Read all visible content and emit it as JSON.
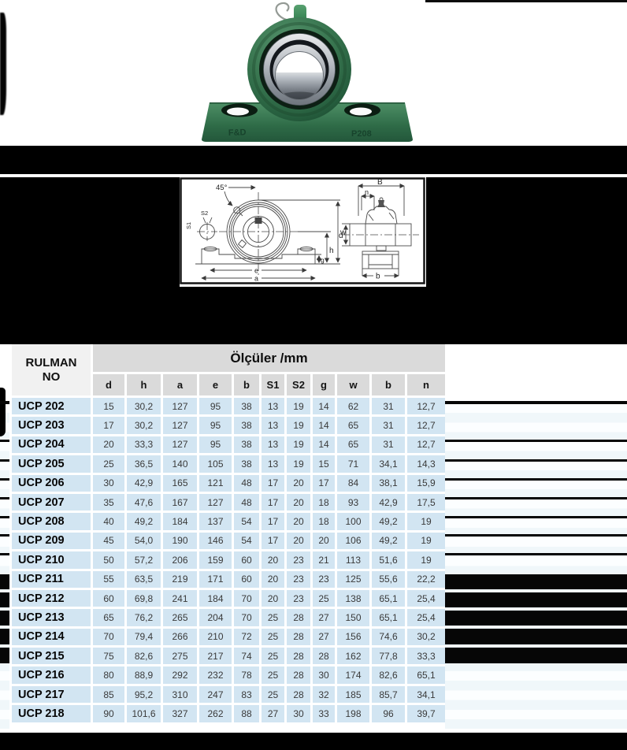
{
  "photo": {
    "description": "green UCP pillow block bearing unit",
    "embossed_left": "F&D",
    "embossed_right": "P208",
    "body_color": "#2f6b47"
  },
  "drawing": {
    "labels": {
      "angle": "45°",
      "s2": "S2",
      "s1": "S1",
      "w": "w",
      "h": "h",
      "g": "g",
      "e": "e",
      "a": "a",
      "B": "B",
      "n": "n",
      "d": "d",
      "b": "b"
    }
  },
  "table": {
    "rowspan_header": {
      "line1": "RULMAN",
      "line2": "NO"
    },
    "group_header": "Ölçüler /mm",
    "columns": [
      "d",
      "h",
      "a",
      "e",
      "b",
      "S1",
      "S2",
      "g",
      "w",
      "b",
      "n"
    ],
    "rows": [
      {
        "name": "UCP 202",
        "values": [
          "15",
          "30,2",
          "127",
          "95",
          "38",
          "13",
          "19",
          "14",
          "62",
          "31",
          "12,7"
        ]
      },
      {
        "name": "UCP 203",
        "values": [
          "17",
          "30,2",
          "127",
          "95",
          "38",
          "13",
          "19",
          "14",
          "65",
          "31",
          "12,7"
        ]
      },
      {
        "name": "UCP 204",
        "values": [
          "20",
          "33,3",
          "127",
          "95",
          "38",
          "13",
          "19",
          "14",
          "65",
          "31",
          "12,7"
        ]
      },
      {
        "name": "UCP 205",
        "values": [
          "25",
          "36,5",
          "140",
          "105",
          "38",
          "13",
          "19",
          "15",
          "71",
          "34,1",
          "14,3"
        ]
      },
      {
        "name": "UCP 206",
        "values": [
          "30",
          "42,9",
          "165",
          "121",
          "48",
          "17",
          "20",
          "17",
          "84",
          "38,1",
          "15,9"
        ]
      },
      {
        "name": "UCP 207",
        "values": [
          "35",
          "47,6",
          "167",
          "127",
          "48",
          "17",
          "20",
          "18",
          "93",
          "42,9",
          "17,5"
        ]
      },
      {
        "name": "UCP 208",
        "values": [
          "40",
          "49,2",
          "184",
          "137",
          "54",
          "17",
          "20",
          "18",
          "100",
          "49,2",
          "19"
        ]
      },
      {
        "name": "UCP 209",
        "values": [
          "45",
          "54,0",
          "190",
          "146",
          "54",
          "17",
          "20",
          "20",
          "106",
          "49,2",
          "19"
        ]
      },
      {
        "name": "UCP 210",
        "values": [
          "50",
          "57,2",
          "206",
          "159",
          "60",
          "20",
          "23",
          "21",
          "113",
          "51,6",
          "19"
        ]
      },
      {
        "name": "UCP 211",
        "values": [
          "55",
          "63,5",
          "219",
          "171",
          "60",
          "20",
          "23",
          "23",
          "125",
          "55,6",
          "22,2"
        ]
      },
      {
        "name": "UCP 212",
        "values": [
          "60",
          "69,8",
          "241",
          "184",
          "70",
          "20",
          "23",
          "25",
          "138",
          "65,1",
          "25,4"
        ]
      },
      {
        "name": "UCP 213",
        "values": [
          "65",
          "76,2",
          "265",
          "204",
          "70",
          "25",
          "28",
          "27",
          "150",
          "65,1",
          "25,4"
        ]
      },
      {
        "name": "UCP 214",
        "values": [
          "70",
          "79,4",
          "266",
          "210",
          "72",
          "25",
          "28",
          "27",
          "156",
          "74,6",
          "30,2"
        ]
      },
      {
        "name": "UCP 215",
        "values": [
          "75",
          "82,6",
          "275",
          "217",
          "74",
          "25",
          "28",
          "28",
          "162",
          "77,8",
          "33,3"
        ]
      },
      {
        "name": "UCP 216",
        "values": [
          "80",
          "88,9",
          "292",
          "232",
          "78",
          "25",
          "28",
          "30",
          "174",
          "82,6",
          "65,1"
        ]
      },
      {
        "name": "UCP 217",
        "values": [
          "85",
          "95,2",
          "310",
          "247",
          "83",
          "25",
          "28",
          "32",
          "185",
          "85,7",
          "34,1"
        ]
      },
      {
        "name": "UCP 218",
        "values": [
          "90",
          "101,6",
          "327",
          "262",
          "88",
          "27",
          "30",
          "33",
          "198",
          "96",
          "39,7"
        ]
      }
    ],
    "colors": {
      "row_bg": "#d2e5f2",
      "header_bg": "#dadada",
      "corner_bg": "#f1f1f1"
    }
  }
}
